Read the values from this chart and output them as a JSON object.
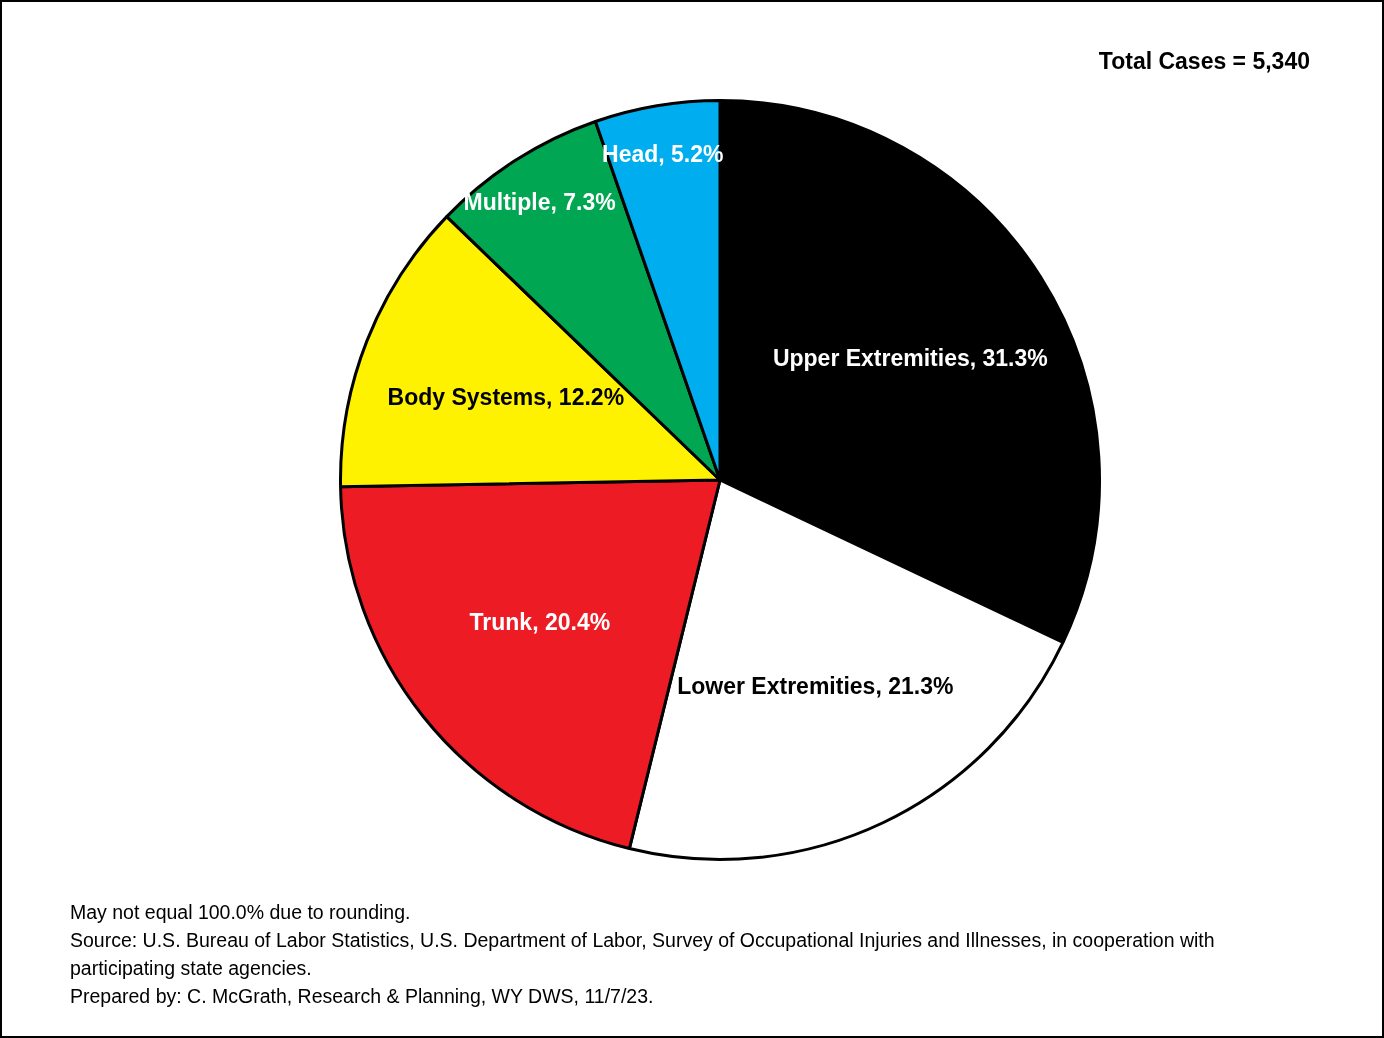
{
  "chart_data": {
    "type": "pie",
    "categories": [
      "Upper Extremities",
      "Lower Extremities",
      "Trunk",
      "Body Systems",
      "Multiple",
      "Head"
    ],
    "values": [
      31.3,
      21.3,
      20.4,
      12.2,
      7.3,
      5.2
    ],
    "value_labels": [
      "31.3%",
      "21.3%",
      "20.4%",
      "12.2%",
      "7.3%",
      "5.2%"
    ],
    "colors": [
      "#000000",
      "#ffffff",
      "#ed1c24",
      "#fff200",
      "#00a651",
      "#00aeef"
    ],
    "legend": false,
    "annotations": [
      "Total Cases = 5,340",
      "May not equal 100.0% due to rounding.",
      "Source: U.S. Bureau of Labor Statistics, U.S. Department of Labor, Survey of Occupational Injuries and Illnesses, in cooperation with participating state agencies.",
      "Prepared by: C. McGrath, Research & Planning, WY DWS, 11/7/23."
    ]
  }
}
